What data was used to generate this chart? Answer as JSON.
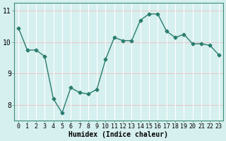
{
  "x": [
    0,
    1,
    2,
    3,
    4,
    5,
    6,
    7,
    8,
    9,
    10,
    11,
    12,
    13,
    14,
    15,
    16,
    17,
    18,
    19,
    20,
    21,
    22,
    23
  ],
  "y": [
    10.45,
    9.75,
    9.75,
    9.55,
    8.2,
    7.75,
    8.55,
    8.4,
    8.35,
    8.5,
    9.45,
    10.15,
    10.05,
    10.05,
    10.7,
    10.9,
    10.9,
    10.35,
    10.15,
    10.25,
    9.95,
    9.95,
    9.9,
    9.6
  ],
  "line_color": "#2a7d6e",
  "marker": "D",
  "marker_size": 2.5,
  "bg_color": "#d6f0ef",
  "grid_color_h": "#e8c8c8",
  "grid_color_v": "#ffffff",
  "xlabel": "Humidex (Indice chaleur)",
  "ylim": [
    7.5,
    11.25
  ],
  "xlim": [
    -0.5,
    23.5
  ],
  "yticks": [
    8,
    9,
    10,
    11
  ],
  "xticks": [
    0,
    1,
    2,
    3,
    4,
    5,
    6,
    7,
    8,
    9,
    10,
    11,
    12,
    13,
    14,
    15,
    16,
    17,
    18,
    19,
    20,
    21,
    22,
    23
  ],
  "tick_fontsize": 6,
  "xlabel_fontsize": 7
}
